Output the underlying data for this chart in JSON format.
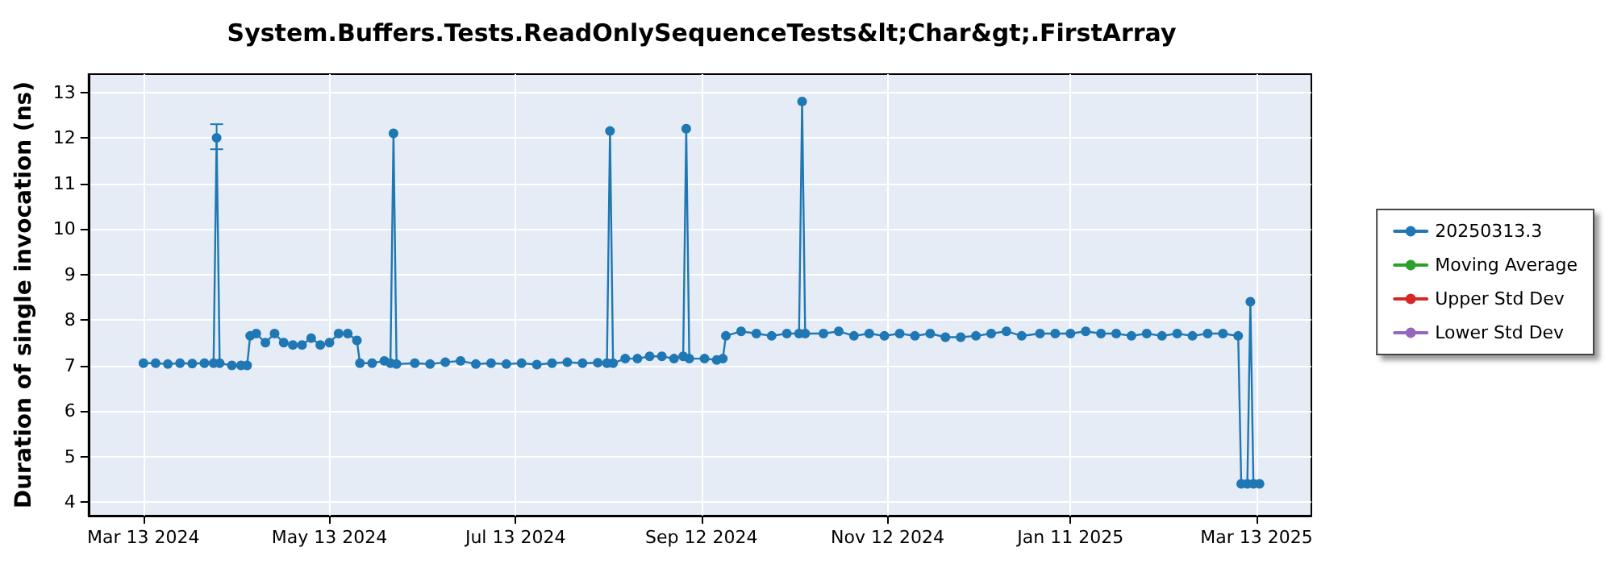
{
  "chart_data": {
    "type": "line",
    "title": "System.Buffers.Tests.ReadOnlySequenceTests&lt;Char&gt;.FirstArray",
    "ylabel": "Duration of single invocation (ns)",
    "xlim": [
      "2024-02-24",
      "2025-03-31"
    ],
    "ylim": [
      3.7,
      13.4
    ],
    "xticks": [
      {
        "value": "2024-03-13",
        "label": "Mar 13 2024"
      },
      {
        "value": "2024-05-13",
        "label": "May 13 2024"
      },
      {
        "value": "2024-07-13",
        "label": "Jul 13 2024"
      },
      {
        "value": "2024-09-12",
        "label": "Sep 12 2024"
      },
      {
        "value": "2024-11-12",
        "label": "Nov 12 2024"
      },
      {
        "value": "2025-01-11",
        "label": "Jan 11 2025"
      },
      {
        "value": "2025-03-13",
        "label": "Mar 13 2025"
      }
    ],
    "yticks": [
      4,
      5,
      6,
      7,
      8,
      9,
      10,
      11,
      12,
      13
    ],
    "grid": true,
    "legend": "right",
    "marker": "circle",
    "line_style": "solid",
    "series": [
      {
        "name": "20250313.3",
        "color": "#1f77b4",
        "x": [
          "2024-03-13",
          "2024-03-17",
          "2024-03-21",
          "2024-03-25",
          "2024-03-29",
          "2024-04-02",
          "2024-04-05",
          "2024-04-06",
          "2024-04-07",
          "2024-04-11",
          "2024-04-14",
          "2024-04-16",
          "2024-04-17",
          "2024-04-19",
          "2024-04-22",
          "2024-04-25",
          "2024-04-28",
          "2024-05-01",
          "2024-05-04",
          "2024-05-07",
          "2024-05-10",
          "2024-05-13",
          "2024-05-16",
          "2024-05-19",
          "2024-05-22",
          "2024-05-23",
          "2024-05-27",
          "2024-05-31",
          "2024-06-02",
          "2024-06-03",
          "2024-06-04",
          "2024-06-10",
          "2024-06-15",
          "2024-06-20",
          "2024-06-25",
          "2024-06-30",
          "2024-07-05",
          "2024-07-10",
          "2024-07-15",
          "2024-07-20",
          "2024-07-25",
          "2024-07-30",
          "2024-08-04",
          "2024-08-09",
          "2024-08-12",
          "2024-08-13",
          "2024-08-14",
          "2024-08-18",
          "2024-08-22",
          "2024-08-26",
          "2024-08-30",
          "2024-09-03",
          "2024-09-06",
          "2024-09-07",
          "2024-09-08",
          "2024-09-13",
          "2024-09-17",
          "2024-09-19",
          "2024-09-20",
          "2024-09-25",
          "2024-09-30",
          "2024-10-05",
          "2024-10-10",
          "2024-10-14",
          "2024-10-15",
          "2024-10-16",
          "2024-10-22",
          "2024-10-27",
          "2024-11-01",
          "2024-11-06",
          "2024-11-11",
          "2024-11-16",
          "2024-11-21",
          "2024-11-26",
          "2024-12-01",
          "2024-12-06",
          "2024-12-11",
          "2024-12-16",
          "2024-12-21",
          "2024-12-26",
          "2025-01-01",
          "2025-01-06",
          "2025-01-11",
          "2025-01-16",
          "2025-01-21",
          "2025-01-26",
          "2025-01-31",
          "2025-02-05",
          "2025-02-10",
          "2025-02-15",
          "2025-02-20",
          "2025-02-25",
          "2025-03-02",
          "2025-03-07",
          "2025-03-08",
          "2025-03-10",
          "2025-03-11",
          "2025-03-12",
          "2025-03-14"
        ],
        "values": [
          7.05,
          7.05,
          7.03,
          7.05,
          7.04,
          7.05,
          7.05,
          12.0,
          7.05,
          7.0,
          7.0,
          7.0,
          7.65,
          7.7,
          7.5,
          7.7,
          7.5,
          7.45,
          7.45,
          7.6,
          7.45,
          7.5,
          7.7,
          7.7,
          7.55,
          7.05,
          7.05,
          7.1,
          7.05,
          12.1,
          7.03,
          7.05,
          7.03,
          7.07,
          7.1,
          7.03,
          7.05,
          7.03,
          7.05,
          7.02,
          7.05,
          7.07,
          7.05,
          7.06,
          7.05,
          12.15,
          7.05,
          7.15,
          7.15,
          7.2,
          7.2,
          7.15,
          7.2,
          12.2,
          7.15,
          7.15,
          7.12,
          7.15,
          7.65,
          7.75,
          7.7,
          7.65,
          7.7,
          7.7,
          12.8,
          7.7,
          7.7,
          7.75,
          7.65,
          7.7,
          7.65,
          7.7,
          7.65,
          7.7,
          7.62,
          7.62,
          7.65,
          7.7,
          7.75,
          7.65,
          7.7,
          7.7,
          7.7,
          7.75,
          7.7,
          7.7,
          7.65,
          7.7,
          7.65,
          7.7,
          7.65,
          7.7,
          7.7,
          7.65,
          4.4,
          4.4,
          8.4,
          4.4,
          4.4
        ],
        "errors": [
          null,
          null,
          null,
          null,
          null,
          null,
          null,
          [
            11.75,
            12.3
          ],
          null,
          null,
          null,
          null,
          null,
          null,
          null,
          null,
          null,
          null,
          null,
          null,
          null,
          null,
          null,
          null,
          null,
          null,
          null,
          null,
          null,
          null,
          null,
          null,
          null,
          null,
          null,
          null,
          null,
          null,
          null,
          null,
          null,
          null,
          null,
          null,
          null,
          null,
          null,
          null,
          null,
          null,
          null,
          null,
          null,
          null,
          null,
          null,
          null,
          null,
          null,
          null,
          null,
          null,
          null,
          null,
          null,
          null,
          null,
          null,
          null,
          null,
          null,
          null,
          null,
          null,
          null,
          null,
          null,
          null,
          null,
          null,
          null,
          null,
          null,
          null,
          null,
          null,
          null,
          null,
          null,
          null,
          null,
          null,
          null,
          null,
          null,
          null,
          null,
          null,
          null
        ]
      },
      {
        "name": "Moving Average",
        "color": "#2ca02c"
      },
      {
        "name": "Upper Std Dev",
        "color": "#d62728"
      },
      {
        "name": "Lower Std Dev",
        "color": "#9467bd"
      }
    ]
  }
}
